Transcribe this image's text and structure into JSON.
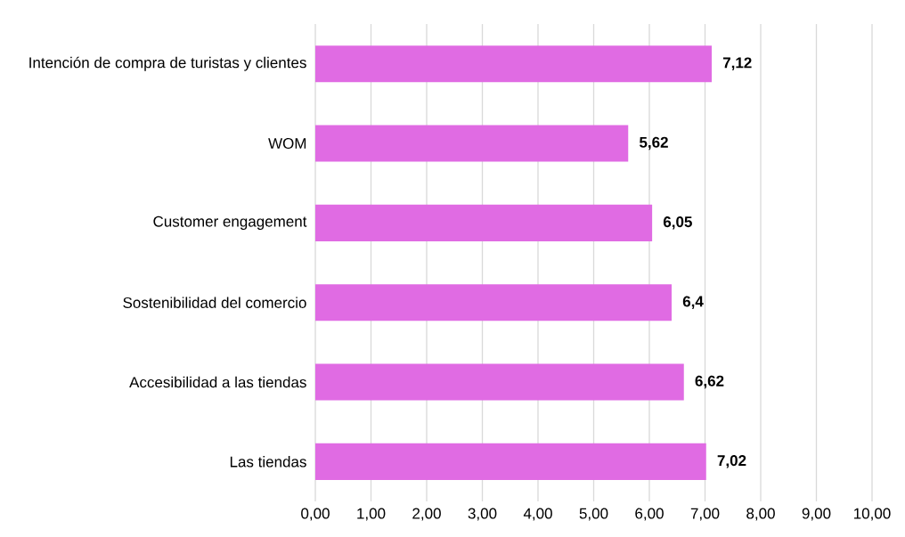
{
  "chart_data": {
    "type": "bar",
    "orientation": "horizontal",
    "categories": [
      "Intención de compra de turistas y clientes",
      "WOM",
      "Customer engagement",
      "Sostenibilidad del comercio",
      "Accesibilidad a las tiendas",
      "Las tiendas"
    ],
    "values": [
      7.12,
      5.62,
      6.05,
      6.4,
      6.62,
      7.02
    ],
    "value_labels": [
      "7,12",
      "5,62",
      "6,05",
      "6,4",
      "6,62",
      "7,02"
    ],
    "color": "#e06be3",
    "xlim": [
      0,
      10
    ],
    "xticks": [
      {
        "value": 0,
        "label": "0,00"
      },
      {
        "value": 1,
        "label": "1,00"
      },
      {
        "value": 2,
        "label": "2,00"
      },
      {
        "value": 3,
        "label": "3,00"
      },
      {
        "value": 4,
        "label": "4,00"
      },
      {
        "value": 5,
        "label": "5,00"
      },
      {
        "value": 6,
        "label": "6,00"
      },
      {
        "value": 7,
        "label": "7,00"
      },
      {
        "value": 8,
        "label": "8,00"
      },
      {
        "value": 9,
        "label": "9,00"
      },
      {
        "value": 10,
        "label": "10,00"
      }
    ],
    "grid": "x"
  }
}
